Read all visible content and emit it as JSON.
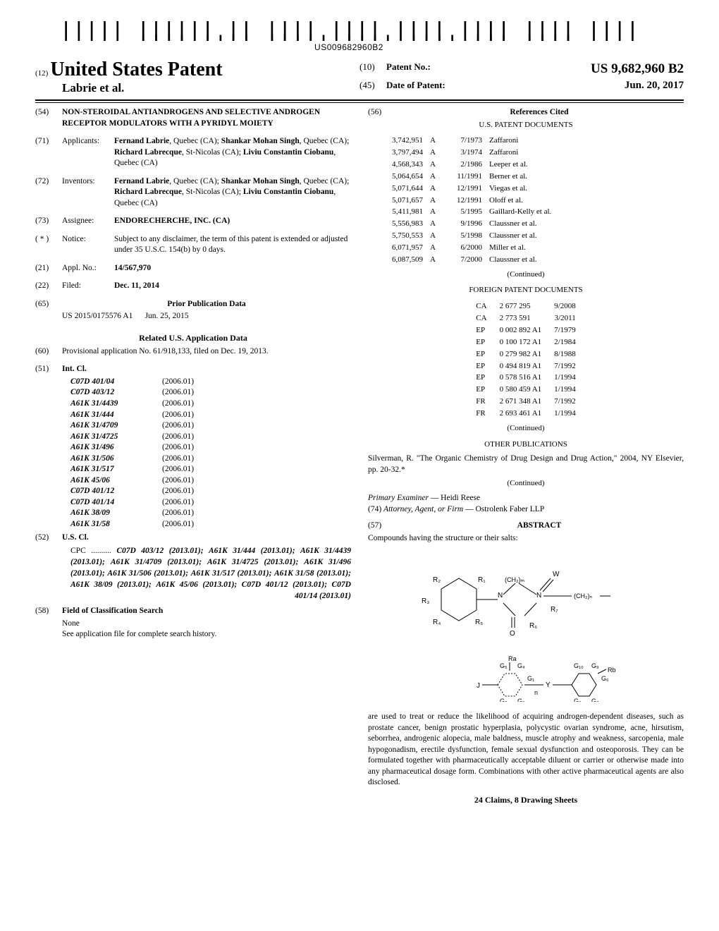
{
  "barcode_text": "US009682960B2",
  "header": {
    "pub_num_code": "(12)",
    "pub_title": "United States Patent",
    "authors": "Labrie et al.",
    "patent_no_code": "(10)",
    "patent_no_label": "Patent No.:",
    "patent_no_value": "US 9,682,960 B2",
    "date_code": "(45)",
    "date_label": "Date of Patent:",
    "date_value": "Jun. 20, 2017"
  },
  "left": {
    "title_code": "(54)",
    "title": "NON-STEROIDAL ANTIANDROGENS AND SELECTIVE ANDROGEN RECEPTOR MODULATORS WITH A PYRIDYL MOIETY",
    "applicants_code": "(71)",
    "applicants_label": "Applicants:",
    "applicants": "Fernand Labrie, Quebec (CA); Shankar Mohan Singh, Quebec (CA); Richard Labrecque, St-Nicolas (CA); Liviu Constantin Ciobanu, Quebec (CA)",
    "inventors_code": "(72)",
    "inventors_label": "Inventors:",
    "inventors": "Fernand Labrie, Quebec (CA); Shankar Mohan Singh, Quebec (CA); Richard Labrecque, St-Nicolas (CA); Liviu Constantin Ciobanu, Quebec (CA)",
    "assignee_code": "(73)",
    "assignee_label": "Assignee:",
    "assignee": "ENDORECHERCHE, INC. (CA)",
    "notice_code": "( * )",
    "notice_label": "Notice:",
    "notice": "Subject to any disclaimer, the term of this patent is extended or adjusted under 35 U.S.C. 154(b) by 0 days.",
    "applno_code": "(21)",
    "applno_label": "Appl. No.:",
    "applno": "14/567,970",
    "filed_code": "(22)",
    "filed_label": "Filed:",
    "filed": "Dec. 11, 2014",
    "prior_pub_code": "(65)",
    "prior_pub_title": "Prior Publication Data",
    "prior_pub_num": "US 2015/0175576 A1",
    "prior_pub_date": "Jun. 25, 2015",
    "related_title": "Related U.S. Application Data",
    "provisional_code": "(60)",
    "provisional": "Provisional application No. 61/918,133, filed on Dec. 19, 2013.",
    "intcl_code": "(51)",
    "intcl_label": "Int. Cl.",
    "intcl": [
      {
        "sym": "C07D 401/04",
        "yr": "(2006.01)"
      },
      {
        "sym": "C07D 403/12",
        "yr": "(2006.01)"
      },
      {
        "sym": "A61K 31/4439",
        "yr": "(2006.01)"
      },
      {
        "sym": "A61K 31/444",
        "yr": "(2006.01)"
      },
      {
        "sym": "A61K 31/4709",
        "yr": "(2006.01)"
      },
      {
        "sym": "A61K 31/4725",
        "yr": "(2006.01)"
      },
      {
        "sym": "A61K 31/496",
        "yr": "(2006.01)"
      },
      {
        "sym": "A61K 31/506",
        "yr": "(2006.01)"
      },
      {
        "sym": "A61K 31/517",
        "yr": "(2006.01)"
      },
      {
        "sym": "A61K 45/06",
        "yr": "(2006.01)"
      },
      {
        "sym": "C07D 401/12",
        "yr": "(2006.01)"
      },
      {
        "sym": "C07D 401/14",
        "yr": "(2006.01)"
      },
      {
        "sym": "A61K 38/09",
        "yr": "(2006.01)"
      },
      {
        "sym": "A61K 31/58",
        "yr": "(2006.01)"
      }
    ],
    "uscl_code": "(52)",
    "uscl_label": "U.S. Cl.",
    "uscl_prefix": "CPC ..........",
    "uscl_text": "C07D 403/12 (2013.01); A61K 31/444 (2013.01); A61K 31/4439 (2013.01); A61K 31/4709 (2013.01); A61K 31/4725 (2013.01); A61K 31/496 (2013.01); A61K 31/506 (2013.01); A61K 31/517 (2013.01); A61K 31/58 (2013.01); A61K 38/09 (2013.01); A61K 45/06 (2013.01); C07D 401/12 (2013.01); C07D 401/14 (2013.01)",
    "fcs_code": "(58)",
    "fcs_label": "Field of Classification Search",
    "fcs_none": "None",
    "fcs_note": "See application file for complete search history."
  },
  "right": {
    "refs_code": "(56)",
    "refs_title": "References Cited",
    "us_docs_title": "U.S. PATENT DOCUMENTS",
    "us_docs": [
      {
        "num": "3,742,951",
        "kind": "A",
        "date": "7/1973",
        "name": "Zaffaroni"
      },
      {
        "num": "3,797,494",
        "kind": "A",
        "date": "3/1974",
        "name": "Zaffaroni"
      },
      {
        "num": "4,568,343",
        "kind": "A",
        "date": "2/1986",
        "name": "Leeper et al."
      },
      {
        "num": "5,064,654",
        "kind": "A",
        "date": "11/1991",
        "name": "Berner et al."
      },
      {
        "num": "5,071,644",
        "kind": "A",
        "date": "12/1991",
        "name": "Viegas et al."
      },
      {
        "num": "5,071,657",
        "kind": "A",
        "date": "12/1991",
        "name": "Oloff et al."
      },
      {
        "num": "5,411,981",
        "kind": "A",
        "date": "5/1995",
        "name": "Gaillard-Kelly et al."
      },
      {
        "num": "5,556,983",
        "kind": "A",
        "date": "9/1996",
        "name": "Claussner et al."
      },
      {
        "num": "5,750,553",
        "kind": "A",
        "date": "5/1998",
        "name": "Claussner et al."
      },
      {
        "num": "6,071,957",
        "kind": "A",
        "date": "6/2000",
        "name": "Miller et al."
      },
      {
        "num": "6,087,509",
        "kind": "A",
        "date": "7/2000",
        "name": "Claussner et al."
      }
    ],
    "continued": "(Continued)",
    "foreign_title": "FOREIGN PATENT DOCUMENTS",
    "foreign_docs": [
      {
        "cc": "CA",
        "num": "2 677 295",
        "date": "9/2008"
      },
      {
        "cc": "CA",
        "num": "2 773 591",
        "date": "3/2011"
      },
      {
        "cc": "EP",
        "num": "0 002 892 A1",
        "date": "7/1979"
      },
      {
        "cc": "EP",
        "num": "0 100 172 A1",
        "date": "2/1984"
      },
      {
        "cc": "EP",
        "num": "0 279 982 A1",
        "date": "8/1988"
      },
      {
        "cc": "EP",
        "num": "0 494 819 A1",
        "date": "7/1992"
      },
      {
        "cc": "EP",
        "num": "0 578 516 A1",
        "date": "1/1994"
      },
      {
        "cc": "EP",
        "num": "0 580 459 A1",
        "date": "1/1994"
      },
      {
        "cc": "FR",
        "num": "2 671 348 A1",
        "date": "7/1992"
      },
      {
        "cc": "FR",
        "num": "2 693 461 A1",
        "date": "1/1994"
      }
    ],
    "other_pub_title": "OTHER PUBLICATIONS",
    "other_pub_text": "Silverman, R. \"The Organic Chemistry of Drug Design and Drug Action,\" 2004, NY Elsevier, pp. 20-32.*",
    "examiner_label": "Primary Examiner",
    "examiner": " — Heidi Reese",
    "attorney_code": "(74)",
    "attorney_label": "Attorney, Agent, or Firm",
    "attorney": " — Ostrolenk Faber LLP",
    "abstract_code": "(57)",
    "abstract_title": "ABSTRACT",
    "abstract_intro": "Compounds having the structure or their salts:",
    "abstract_body": "are used to treat or reduce the likelihood of acquiring androgen-dependent diseases, such as prostate cancer, benign prostatic hyperplasia, polycystic ovarian syndrome, acne, hirsutism, seborrhea, androgenic alopecia, male baldness, muscle atrophy and weakness, sarcopenia, male hypogonadism, erectile dysfunction, female sexual dysfunction and osteoporosis. They can be formulated together with pharmaceutically acceptable diluent or carrier or otherwise made into any pharmaceutical dosage form. Combinations with other active pharmaceutical agents are also disclosed.",
    "claims": "24 Claims, 8 Drawing Sheets"
  }
}
